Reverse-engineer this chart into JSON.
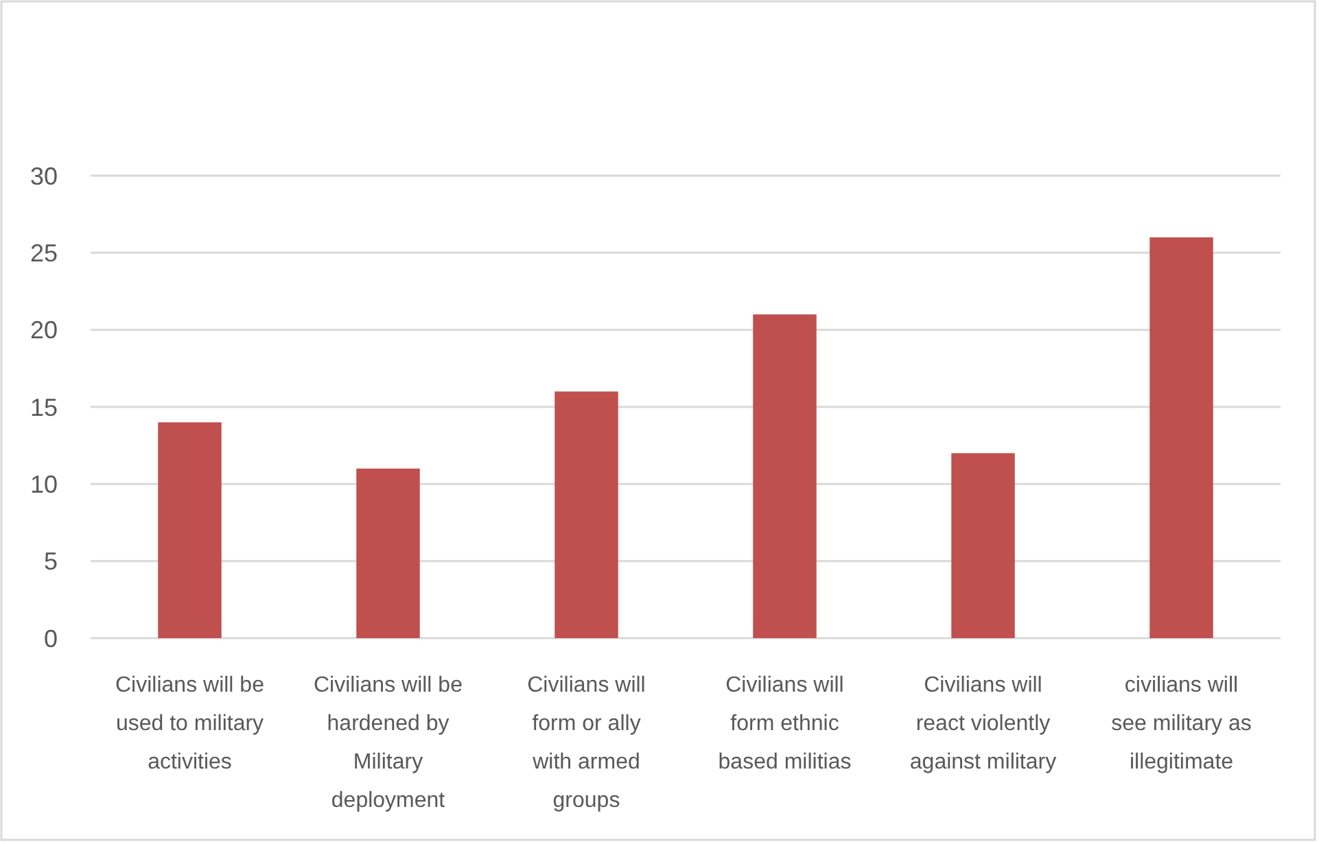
{
  "chart_data": {
    "type": "bar",
    "categories": [
      "Civilians will be used to military activities",
      "Civilians will be hardened by Military deployment",
      "Civilians will form or ally with armed groups",
      "Civilians will form ethnic based militias",
      "Civilians will react violently against military",
      "civilians will see military as illegitimate"
    ],
    "values": [
      14,
      11,
      16,
      21,
      12,
      26
    ],
    "color": "#c0504d",
    "ylim": [
      0,
      30
    ],
    "yticks": [
      0,
      5,
      10,
      15,
      20,
      25,
      30
    ],
    "grid": "y"
  }
}
